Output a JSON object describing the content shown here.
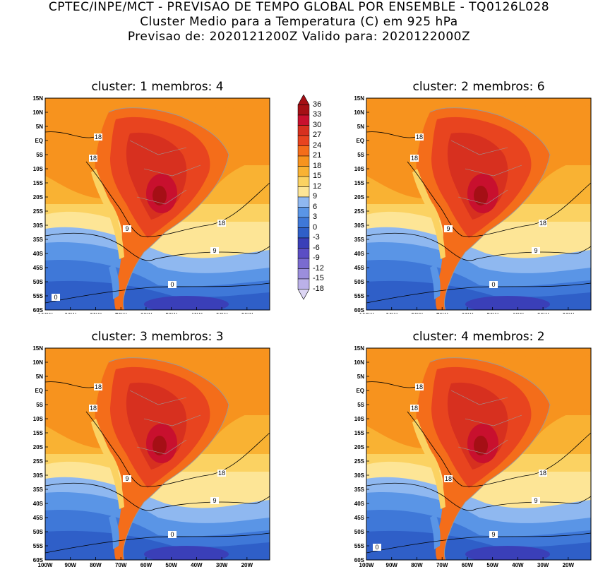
{
  "header": {
    "line1": "CPTEC/INPE/MCT - PREVISAO DE TEMPO GLOBAL POR ENSEMBLE - TQ0126L028",
    "line2": "Cluster Medio para a Temperatura (C) em 925 hPa",
    "line3": "Previsao de: 2020121200Z   Valido para: 2020122000Z"
  },
  "panels": [
    {
      "title": "cluster: 1   membros: 4",
      "contour_labels": [
        "18",
        "18",
        "18",
        "9",
        "9",
        "0",
        "0"
      ]
    },
    {
      "title": "cluster: 2   membros: 6",
      "contour_labels": [
        "18",
        "18",
        "18",
        "9",
        "9",
        "0"
      ]
    },
    {
      "title": "cluster: 3   membros: 3",
      "contour_labels": [
        "18",
        "18",
        "18",
        "9",
        "9",
        "0"
      ]
    },
    {
      "title": "cluster: 4   membros: 2",
      "contour_labels": [
        "18",
        "18",
        "18",
        "18",
        "9",
        "9",
        "0"
      ]
    }
  ],
  "axes": {
    "lat_ticks": [
      "15N",
      "10N",
      "5N",
      "EQ",
      "5S",
      "10S",
      "15S",
      "20S",
      "25S",
      "30S",
      "35S",
      "40S",
      "45S",
      "50S",
      "55S",
      "60S"
    ],
    "lon_ticks": [
      "100W",
      "90W",
      "80W",
      "70W",
      "60W",
      "50W",
      "40W",
      "30W",
      "20W"
    ]
  },
  "colorbar": {
    "levels": [
      "36",
      "33",
      "30",
      "27",
      "24",
      "21",
      "18",
      "15",
      "12",
      "9",
      "6",
      "3",
      "0",
      "-3",
      "-6",
      "-9",
      "-12",
      "-15",
      "-18"
    ],
    "colors": [
      "#a50f15",
      "#c8102e",
      "#d7301f",
      "#e8441f",
      "#f46d1a",
      "#f7931e",
      "#f9b233",
      "#fbd262",
      "#fde596",
      "#8fb8f0",
      "#5a95e6",
      "#3f78d8",
      "#2f5fc8",
      "#3a3fb8",
      "#5b4ec4",
      "#7a6bd0",
      "#9b8edc",
      "#bbb1e8",
      "#ddd6f4"
    ]
  }
}
